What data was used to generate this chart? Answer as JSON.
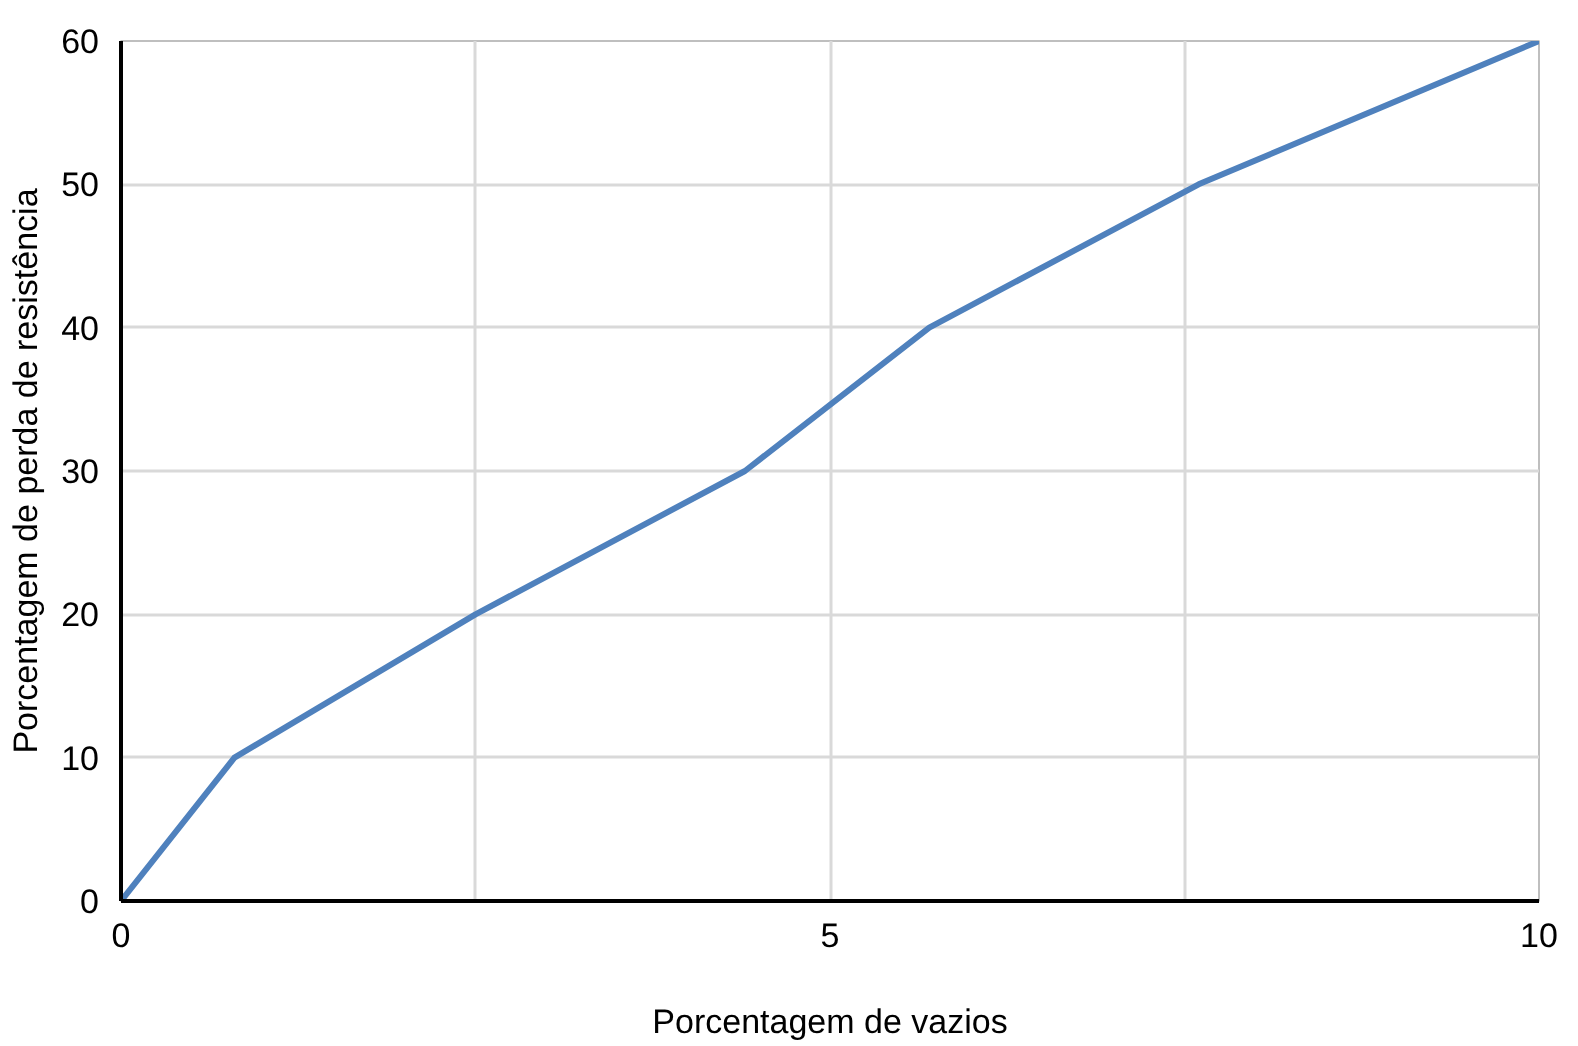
{
  "chart_data": {
    "type": "line",
    "xlabel": "Porcentagem de vazios",
    "ylabel": "Porcentagem de perda de resistência",
    "x": [
      0,
      0.8,
      2.5,
      4.4,
      5.7,
      7.6,
      10
    ],
    "series": [
      {
        "color": "#4f81bd",
        "values": [
          0,
          10,
          20,
          30,
          40,
          50,
          60
        ]
      }
    ],
    "xlim": [
      0,
      10
    ],
    "ylim": [
      0,
      60
    ],
    "xticks": [
      0,
      {
        "value": 2.5,
        "label": null
      },
      5,
      {
        "value": 7.5,
        "label": null
      },
      10
    ],
    "yticks": [
      0,
      10,
      20,
      30,
      40,
      50,
      60
    ],
    "grid": true,
    "marker": "none",
    "line_style": "solid"
  }
}
